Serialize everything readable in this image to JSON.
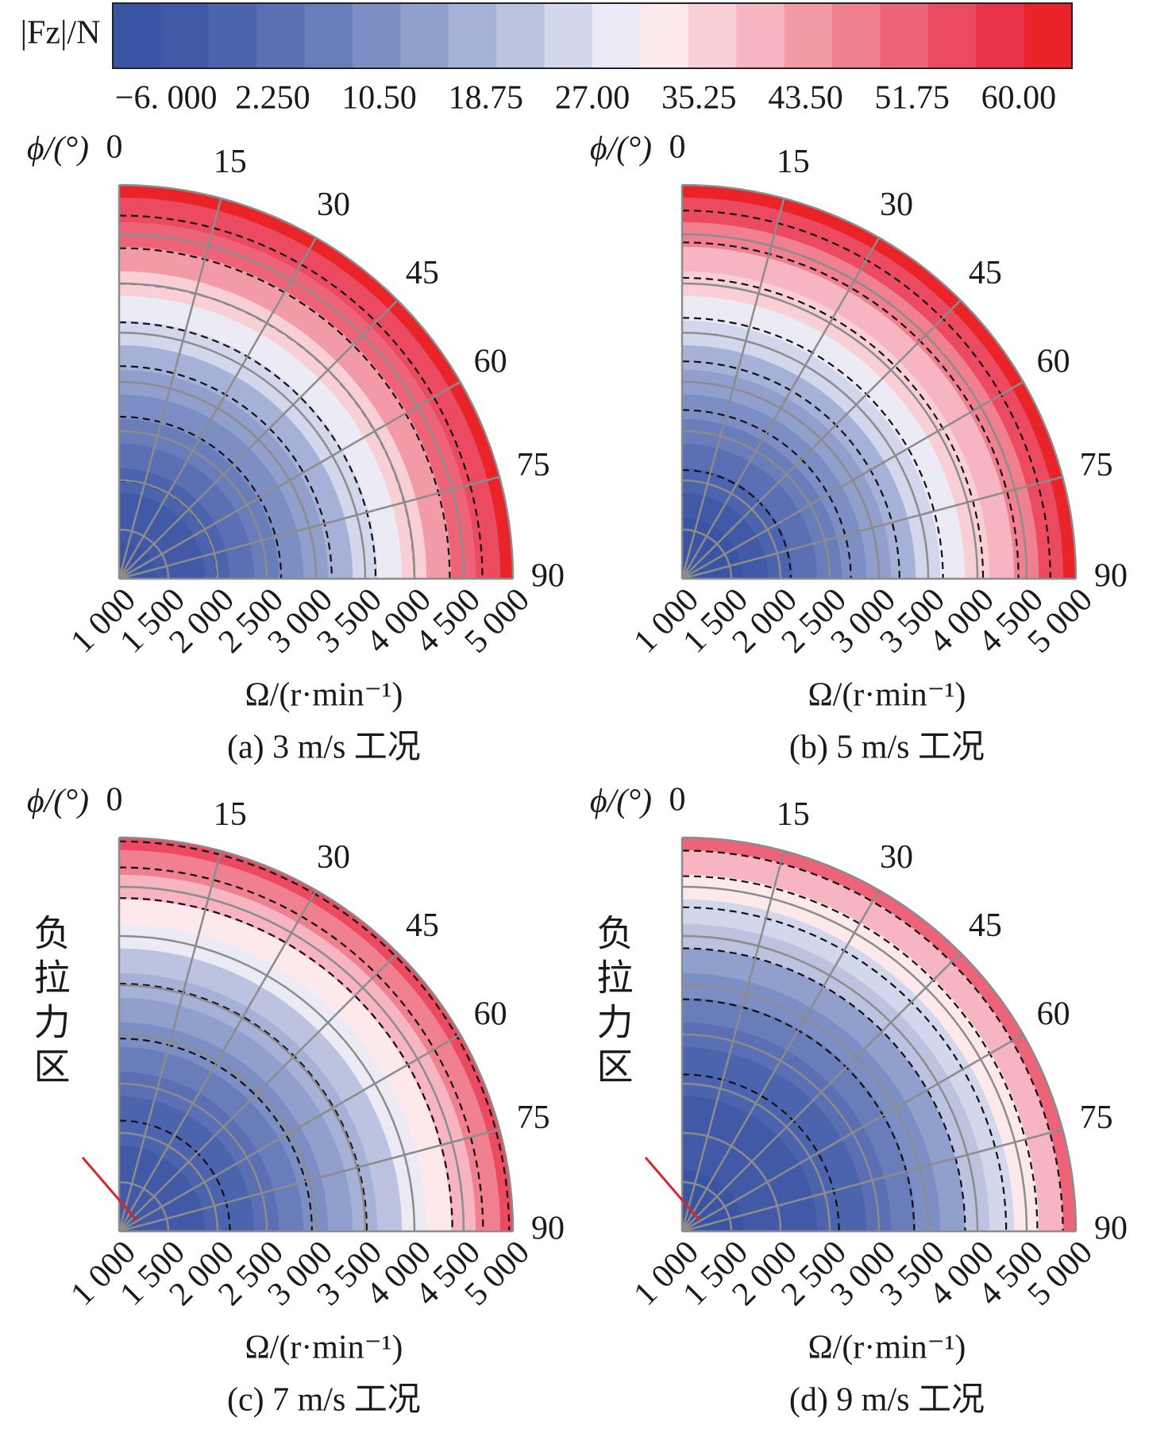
{
  "colorbar": {
    "label": "|Fz|/N",
    "lim": [
      -6,
      60
    ],
    "ticks": [
      {
        "value": -6,
        "label": "−6. 000"
      },
      {
        "value": 2.25,
        "label": "2.250"
      },
      {
        "value": 10.5,
        "label": "10.50"
      },
      18.75,
      {
        "value": 27,
        "label": "27.00"
      },
      35.25,
      {
        "value": 43.5,
        "label": "43.50"
      },
      51.75,
      {
        "value": 60,
        "label": "60.00"
      }
    ],
    "colors": [
      "#3a54a4",
      "#4259a8",
      "#4c63ad",
      "#5a6fb4",
      "#6a7dbb",
      "#7d8ec4",
      "#919fcd",
      "#a6b1d7",
      "#bcc3e1",
      "#d3d7eb",
      "#ecebf5",
      "#fde9ec",
      "#f9cfd6",
      "#f6b5c0",
      "#f39aa8",
      "#f07f90",
      "#ed6478",
      "#eb4a60",
      "#ea3349",
      "#ea2329"
    ]
  },
  "chart_data": [
    {
      "type": "polar_contour",
      "title": "(a) 3 m/s 工况",
      "theta_label": "ϕ/(°)",
      "r_label": "Ω/(r·min⁻¹)",
      "thetalim": [
        0,
        90
      ],
      "thetaticks": [
        0,
        15,
        30,
        45,
        60,
        75,
        90
      ],
      "rlim": [
        1000,
        5000
      ],
      "rticks": [
        {
          "value": 1000,
          "label": "1 000"
        },
        {
          "value": 1500,
          "label": "1 500"
        },
        {
          "value": 2000,
          "label": "2 000"
        },
        {
          "value": 2500,
          "label": "2 500"
        },
        {
          "value": 3000,
          "label": "3 000"
        },
        {
          "value": 3500,
          "label": "3 500"
        },
        {
          "value": 4000,
          "label": "4 000"
        },
        {
          "value": 4500,
          "label": "4 500"
        },
        {
          "value": 5000,
          "label": "5 000"
        }
      ],
      "r": [
        1000,
        1250,
        1500,
        1750,
        2000,
        2250,
        2500,
        2750,
        3000,
        3250,
        3500,
        3750,
        4000,
        4250,
        4500,
        4750,
        5000
      ],
      "values": [
        -6,
        -4.5,
        -2.6,
        -0.3,
        2.3,
        5.2,
        8.4,
        12.0,
        16.0,
        20.3,
        24.9,
        29.9,
        35.3,
        40.9,
        46.9,
        53.3,
        60
      ],
      "grid": true
    },
    {
      "type": "polar_contour",
      "title": "(b) 5 m/s 工况",
      "theta_label": "ϕ/(°)",
      "r_label": "Ω/(r·min⁻¹)",
      "thetalim": [
        0,
        90
      ],
      "thetaticks": [
        0,
        15,
        30,
        45,
        60,
        75,
        90
      ],
      "rlim": [
        1000,
        5000
      ],
      "rticks": [
        {
          "value": 1000,
          "label": "1 000"
        },
        {
          "value": 1500,
          "label": "1 500"
        },
        {
          "value": 2000,
          "label": "2 000"
        },
        {
          "value": 2500,
          "label": "2 500"
        },
        {
          "value": 3000,
          "label": "3 000"
        },
        {
          "value": 3500,
          "label": "3 500"
        },
        {
          "value": 4000,
          "label": "4 000"
        },
        {
          "value": 4500,
          "label": "4 500"
        },
        {
          "value": 5000,
          "label": "5 000"
        }
      ],
      "r": [
        1000,
        1250,
        1500,
        1750,
        2000,
        2250,
        2500,
        2750,
        3000,
        3250,
        3500,
        3750,
        4000,
        4250,
        4500,
        4750,
        5000
      ],
      "values": [
        -6,
        -5,
        -3.5,
        -1.5,
        1,
        4,
        7.5,
        11,
        15,
        19.5,
        24,
        29,
        34,
        39.5,
        45.5,
        52,
        58.5
      ],
      "grid": true
    },
    {
      "type": "polar_contour",
      "title": "(c) 7 m/s 工况",
      "theta_label": "ϕ/(°)",
      "r_label": "Ω/(r·min⁻¹)",
      "thetalim": [
        0,
        90
      ],
      "thetaticks": [
        0,
        15,
        30,
        45,
        60,
        75,
        90
      ],
      "rlim": [
        1000,
        5000
      ],
      "rticks": [
        {
          "value": 1000,
          "label": "1 000"
        },
        {
          "value": 1500,
          "label": "1 500"
        },
        {
          "value": 2000,
          "label": "2 000"
        },
        {
          "value": 2500,
          "label": "2 500"
        },
        {
          "value": 3000,
          "label": "3 000"
        },
        {
          "value": 3500,
          "label": "3 500"
        },
        {
          "value": 4000,
          "label": "4 000"
        },
        {
          "value": 4500,
          "label": "4 500"
        },
        {
          "value": 5000,
          "label": "5 000"
        }
      ],
      "r": [
        1000,
        1250,
        1500,
        1750,
        2000,
        2250,
        2500,
        2750,
        3000,
        3250,
        3500,
        3750,
        4000,
        4250,
        4500,
        4750,
        5000
      ],
      "values": [
        -3,
        -2,
        -1,
        0,
        1.5,
        3,
        5,
        8,
        11,
        14.5,
        18.5,
        22.5,
        27,
        32,
        38,
        45,
        53
      ],
      "grid": true,
      "annotation": "负拉力区"
    },
    {
      "type": "polar_contour",
      "title": "(d) 9 m/s 工况",
      "theta_label": "ϕ/(°)",
      "r_label": "Ω/(r·min⁻¹)",
      "thetalim": [
        0,
        90
      ],
      "thetaticks": [
        0,
        15,
        30,
        45,
        60,
        75,
        90
      ],
      "rlim": [
        1000,
        5000
      ],
      "rticks": [
        {
          "value": 1000,
          "label": "1 000"
        },
        {
          "value": 1500,
          "label": "1 500"
        },
        {
          "value": 2000,
          "label": "2 000"
        },
        {
          "value": 2500,
          "label": "2 500"
        },
        {
          "value": 3000,
          "label": "3 000"
        },
        {
          "value": 3500,
          "label": "3 500"
        },
        {
          "value": 4000,
          "label": "4 000"
        },
        {
          "value": 4500,
          "label": "4 500"
        },
        {
          "value": 5000,
          "label": "5 000"
        }
      ],
      "r": [
        1000,
        1250,
        1500,
        1750,
        2000,
        2250,
        2500,
        2750,
        3000,
        3250,
        3500,
        3750,
        4000,
        4250,
        4500,
        4750,
        5000
      ],
      "values": [
        -5,
        -4,
        -3,
        -2,
        -1,
        0,
        1.5,
        3.5,
        6,
        9,
        12.5,
        16.5,
        21,
        26,
        32,
        39.5,
        48
      ],
      "grid": true,
      "annotation": "负拉力区"
    }
  ]
}
